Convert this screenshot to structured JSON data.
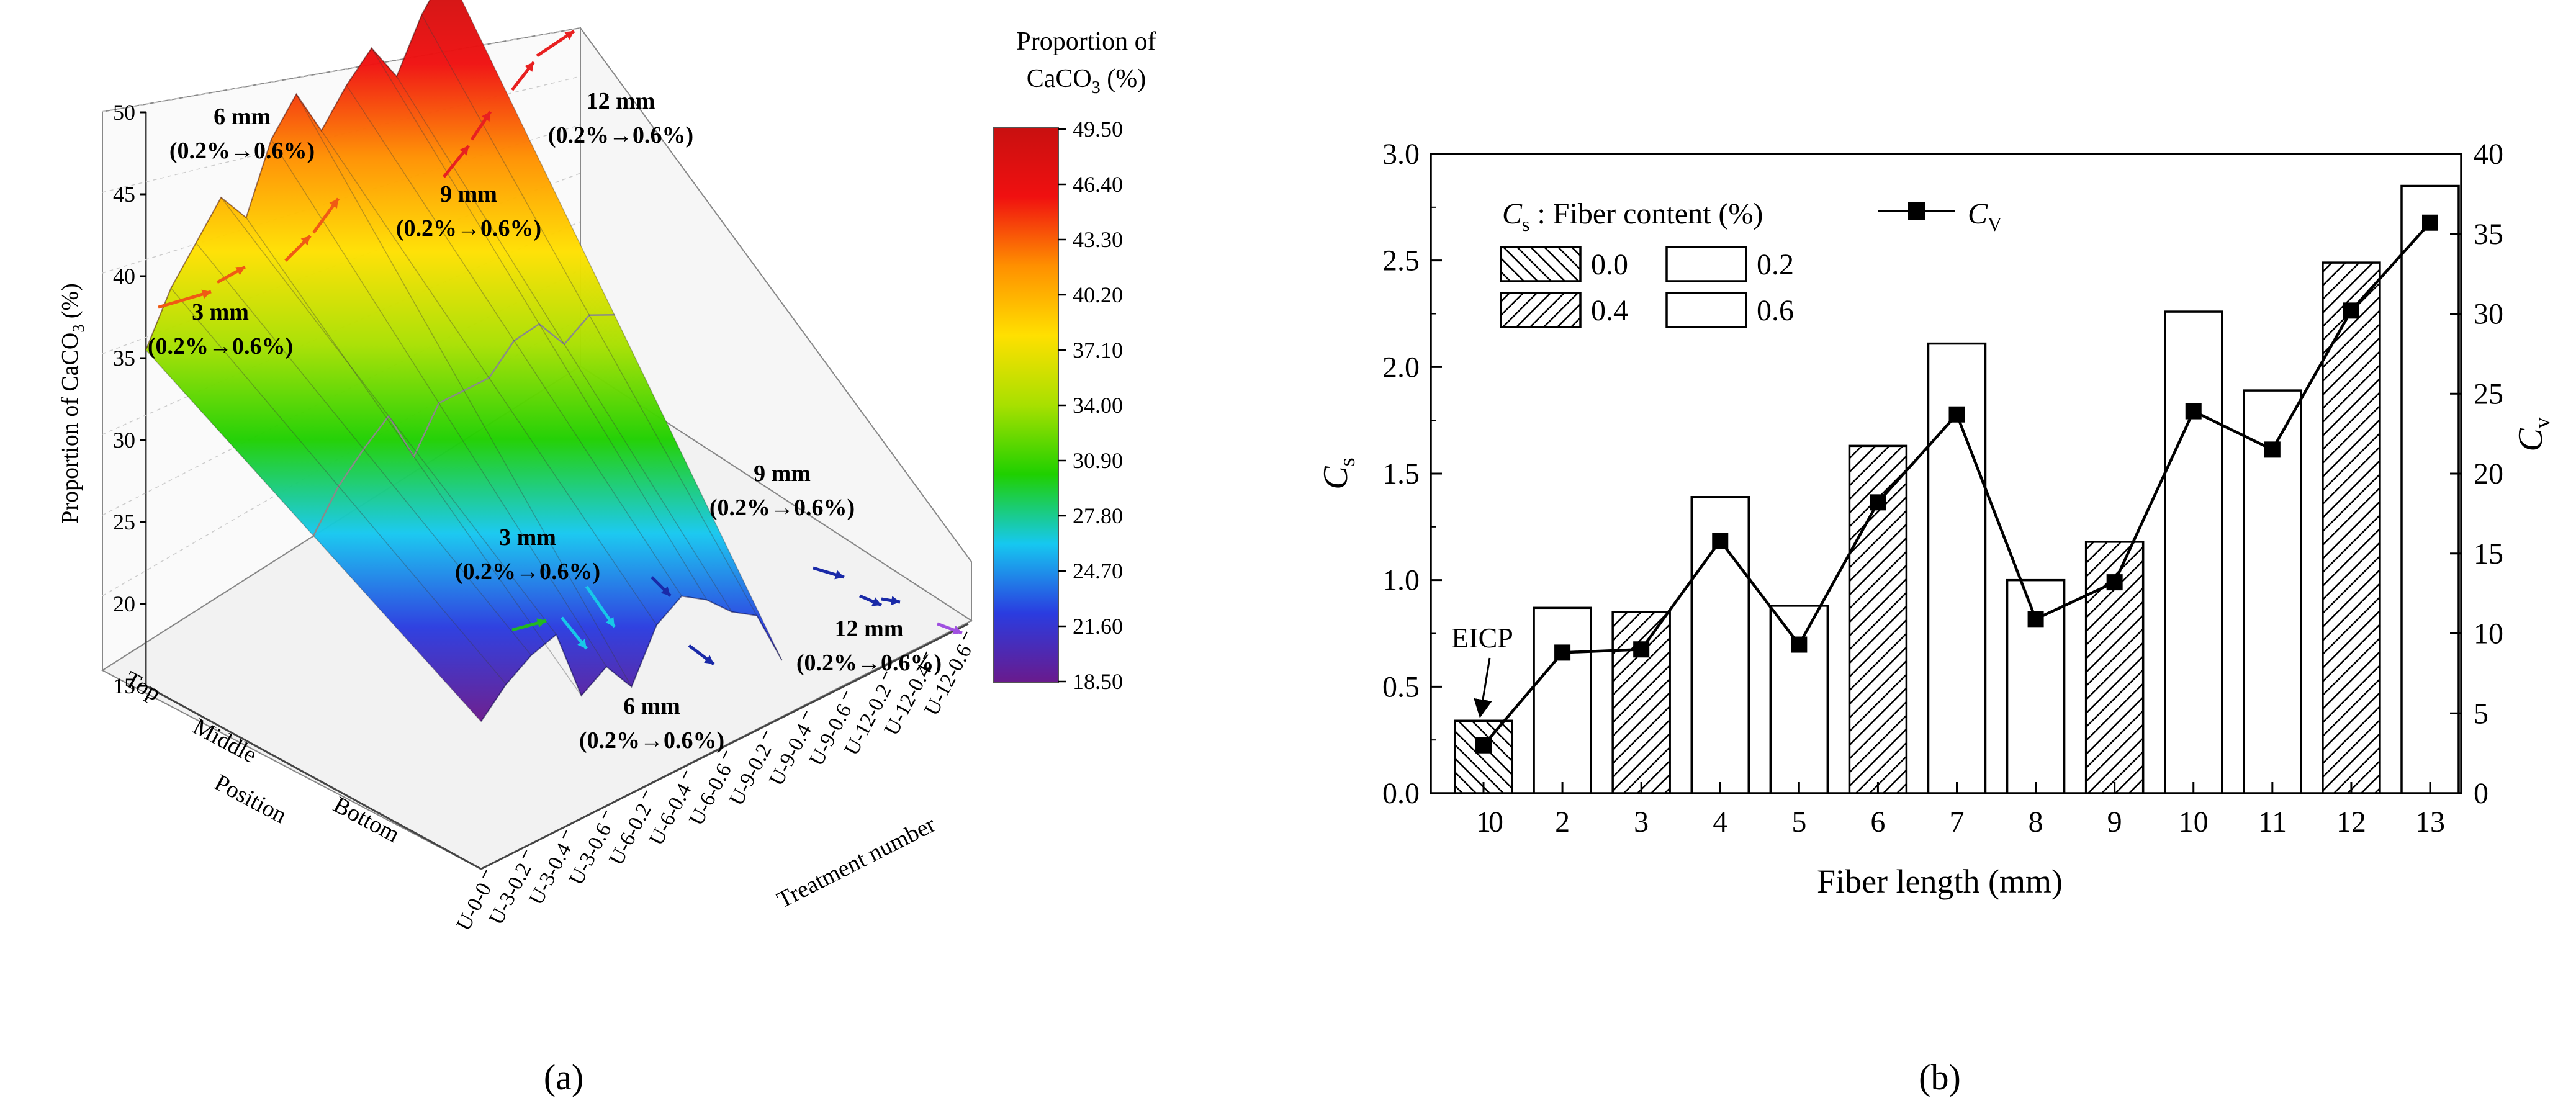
{
  "colors": {
    "surface_stops": [
      "#6a1a8c",
      "#2a3ce0",
      "#16c8f0",
      "#1fd000",
      "#a8e000",
      "#ffe000",
      "#ff9000",
      "#f01010",
      "#c81010"
    ],
    "arrow_orange": "#f05a14",
    "arrow_red": "#e82020",
    "arrow_green": "#22b820",
    "arrow_cyan": "#18c8e8",
    "arrow_blue": "#1a2aa8",
    "arrow_violet": "#a050e0"
  },
  "panel_labels": {
    "a": "(a)",
    "b": "(b)"
  },
  "chart_data": [
    {
      "type": "heatmap",
      "subtype": "3d-surface",
      "title": "",
      "zlabel": "Proportion of CaCO3 (%)",
      "zlabel_main": "Proportion of CaCO",
      "zlabel_sub": "3",
      "zlabel_tail": " (%)",
      "zlim": [
        15,
        50
      ],
      "z_ticks": [
        "15",
        "20",
        "25",
        "30",
        "35",
        "40",
        "45",
        "50"
      ],
      "position_label": "Position",
      "position_ticks": [
        "Top",
        "Middle",
        "Bottom"
      ],
      "treatment_label": "Treatment number",
      "treatment_ticks": [
        "U-0-0",
        "U-3-0.2",
        "U-3-0.4",
        "U-3-0.6",
        "U-6-0.2",
        "U-6-0.4",
        "U-6-0.6",
        "U-9-0.2",
        "U-9-0.4",
        "U-9-0.6",
        "U-12-0.2",
        "U-12-0.4",
        "U-12-0.6"
      ],
      "colorbar": {
        "title_line1": "Proportion of",
        "title_line2_main": "CaCO",
        "title_line2_sub": "3",
        "title_line2_tail": " (%)",
        "ticks": [
          "49.50",
          "46.40",
          "43.30",
          "40.20",
          "37.10",
          "34.00",
          "30.90",
          "27.80",
          "24.70",
          "21.60",
          "18.50"
        ],
        "range": [
          18.5,
          49.5
        ]
      },
      "annotations": [
        {
          "group": "6 mm",
          "range": "(0.2%→0.6%)",
          "row": "Top"
        },
        {
          "group": "12 mm",
          "range": "(0.2%→0.6%)",
          "row": "Top"
        },
        {
          "group": "9 mm",
          "range": "(0.2%→0.6%)",
          "row": "Top"
        },
        {
          "group": "3 mm",
          "range": "(0.2%→0.6%)",
          "row": "Top"
        },
        {
          "group": "9 mm",
          "range": "(0.2%→0.6%)",
          "row": "Bottom"
        },
        {
          "group": "3 mm",
          "range": "(0.2%→0.6%)",
          "row": "Bottom"
        },
        {
          "group": "12 mm",
          "range": "(0.2%→0.6%)",
          "row": "Bottom"
        },
        {
          "group": "6 mm",
          "range": "(0.2%→0.6%)",
          "row": "Bottom"
        }
      ],
      "values_top": [
        35.5,
        38.5,
        40.5,
        42.5,
        40.5,
        44.5,
        46.5,
        43.5,
        45.5,
        47,
        44.5,
        47.5,
        49.5
      ],
      "values_bottom": [
        24,
        25.5,
        26.5,
        27,
        22.5,
        23.5,
        21.5,
        24.5,
        25.5,
        24.5,
        23,
        22,
        18.5
      ]
    },
    {
      "type": "bar",
      "title": "",
      "xlabel": "Fiber length (mm)",
      "ylabel_left": "C",
      "ylabel_left_sub": "s",
      "ylabel_right": "C",
      "ylabel_right_sub": "v",
      "ylim_left": [
        0,
        3.0
      ],
      "ylim_right": [
        0,
        40
      ],
      "left_ticks": [
        "0.0",
        "0.5",
        "1.0",
        "1.5",
        "2.0",
        "2.5",
        "3.0"
      ],
      "right_ticks": [
        "0",
        "5",
        "10",
        "15",
        "20",
        "25",
        "30",
        "35",
        "40"
      ],
      "categories": [
        "1",
        "2",
        "3",
        "4",
        "5",
        "6",
        "7",
        "8",
        "9",
        "10",
        "11",
        "12",
        "13"
      ],
      "cs_values": [
        0.34,
        0.87,
        0.85,
        1.39,
        0.88,
        1.63,
        2.11,
        1.0,
        1.18,
        2.26,
        1.89,
        2.49,
        2.85
      ],
      "fiber_content": [
        "0.0",
        "0.2",
        "0.4",
        "0.6",
        "0.2",
        "0.4",
        "0.6",
        "0.2",
        "0.4",
        "0.6",
        "0.2",
        "0.4",
        "0.6"
      ],
      "cv_values": [
        3.0,
        8.8,
        9.0,
        15.8,
        9.3,
        18.2,
        23.7,
        10.9,
        13.2,
        23.9,
        21.5,
        30.2,
        35.7
      ],
      "legend": {
        "title_main": "C",
        "title_sub": "s",
        "title_tail": " : Fiber content (%)",
        "entries": [
          {
            "label": "0.0",
            "pattern": "hatch-back"
          },
          {
            "label": "0.2",
            "pattern": "none"
          },
          {
            "label": "0.4",
            "pattern": "hatch-forward"
          },
          {
            "label": "0.6",
            "pattern": "none"
          }
        ],
        "line_label_main": "C",
        "line_label_sub": "V"
      },
      "x_extra_tick": "0",
      "annotation": "EICP"
    }
  ]
}
